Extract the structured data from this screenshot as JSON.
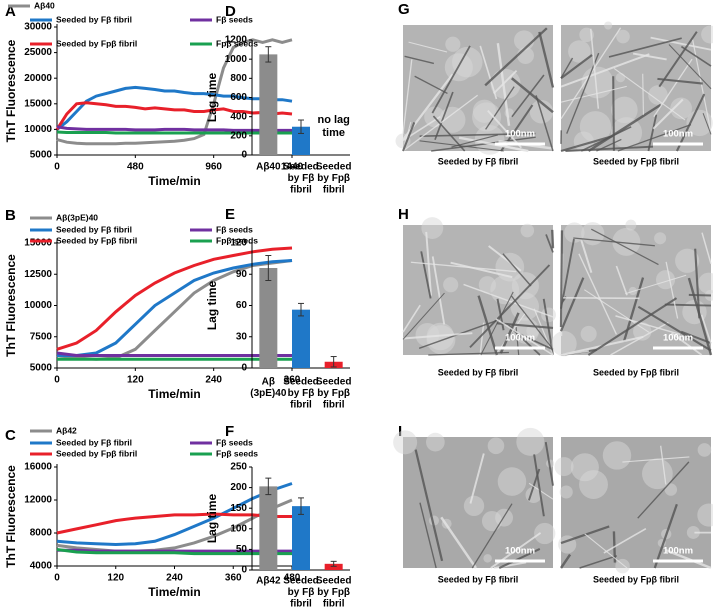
{
  "chart_data": [
    {
      "type": "line",
      "panel": "A",
      "xlabel": "Time/min",
      "ylabel": "ThT Fluorescence",
      "xlim": [
        0,
        1440
      ],
      "xticks": [
        0,
        480,
        960,
        1440
      ],
      "ylim": [
        5000,
        30000
      ],
      "yticks": [
        5000,
        10000,
        15000,
        20000,
        25000,
        30000
      ],
      "x": [
        0,
        60,
        120,
        180,
        240,
        300,
        360,
        420,
        480,
        540,
        600,
        660,
        720,
        780,
        840,
        900,
        960,
        1020,
        1080,
        1140,
        1200,
        1260,
        1320,
        1380,
        1440
      ],
      "series": [
        {
          "name": "Aβ40",
          "color": "#8c8c8c",
          "values": [
            8000,
            7500,
            7300,
            7200,
            7200,
            7200,
            7200,
            7300,
            7300,
            7400,
            7500,
            7600,
            7700,
            7900,
            8200,
            9000,
            15000,
            22000,
            26000,
            27000,
            27500,
            27000,
            27500,
            27000,
            27500
          ]
        },
        {
          "name": "Seeded by Fβ fibril",
          "color": "#1f78c8",
          "values": [
            10000,
            11500,
            13500,
            15500,
            16500,
            17000,
            17500,
            18000,
            18200,
            18000,
            17800,
            17500,
            17500,
            17200,
            17000,
            17000,
            16800,
            16500,
            16500,
            16200,
            16000,
            16000,
            15800,
            15800,
            15500
          ]
        },
        {
          "name": "Seeded by Fpβ fibril",
          "color": "#e8202a",
          "values": [
            10000,
            13000,
            15000,
            15200,
            15000,
            14800,
            14500,
            14500,
            14300,
            14000,
            14200,
            14000,
            13800,
            13800,
            13500,
            13500,
            13800,
            14000,
            13500,
            13500,
            13200,
            13300,
            13000,
            13200,
            13000
          ]
        },
        {
          "name": "Fβ seeds",
          "color": "#7030a0",
          "values": [
            10500,
            10200,
            10100,
            10000,
            10000,
            10000,
            10000,
            10000,
            9900,
            9900,
            9900,
            10000,
            10000,
            10000,
            9900,
            9900,
            9900,
            9900,
            9800,
            9800,
            9800,
            9800,
            9800,
            9800,
            9800
          ]
        },
        {
          "name": "Fpβ seeds",
          "color": "#1aa050",
          "values": [
            9500,
            9400,
            9400,
            9400,
            9400,
            9400,
            9300,
            9300,
            9300,
            9300,
            9300,
            9300,
            9300,
            9300,
            9300,
            9300,
            9300,
            9300,
            9300,
            9300,
            9300,
            9300,
            9300,
            9300,
            9300
          ]
        }
      ]
    },
    {
      "type": "line",
      "panel": "B",
      "xlabel": "Time/min",
      "ylabel": "ThT Fluorescence",
      "xlim": [
        0,
        360
      ],
      "xticks": [
        0,
        120,
        240,
        360
      ],
      "ylim": [
        5000,
        15000
      ],
      "yticks": [
        5000,
        7500,
        10000,
        12500,
        15000
      ],
      "x": [
        0,
        30,
        60,
        90,
        120,
        150,
        180,
        210,
        240,
        270,
        300,
        330,
        360
      ],
      "series": [
        {
          "name": "Aβ(3pE)40",
          "color": "#8c8c8c",
          "values": [
            6000,
            5800,
            5700,
            5800,
            6500,
            8000,
            9500,
            11000,
            12000,
            12700,
            13200,
            13400,
            13600
          ]
        },
        {
          "name": "Seeded by Fβ fibril",
          "color": "#1f78c8",
          "values": [
            6000,
            6000,
            6200,
            7000,
            8500,
            10000,
            11000,
            12000,
            12600,
            13000,
            13300,
            13500,
            13600
          ]
        },
        {
          "name": "Seeded by Fpβ fibril",
          "color": "#e8202a",
          "values": [
            6500,
            7000,
            8000,
            9500,
            10800,
            11800,
            12600,
            13200,
            13700,
            14000,
            14300,
            14500,
            14600
          ]
        },
        {
          "name": "Fβ seeds",
          "color": "#7030a0",
          "values": [
            6200,
            6000,
            6000,
            6000,
            6000,
            6000,
            6000,
            6000,
            6000,
            6000,
            6000,
            6000,
            6000
          ]
        },
        {
          "name": "Fpβ seeds",
          "color": "#1aa050",
          "values": [
            5700,
            5700,
            5700,
            5700,
            5700,
            5700,
            5700,
            5700,
            5700,
            5700,
            5700,
            5700,
            5700
          ]
        }
      ]
    },
    {
      "type": "line",
      "panel": "C",
      "xlabel": "Time/min",
      "ylabel": "ThT Fluorescence",
      "xlim": [
        0,
        480
      ],
      "xticks": [
        0,
        120,
        240,
        360,
        480
      ],
      "ylim": [
        4000,
        16000
      ],
      "yticks": [
        4000,
        8000,
        12000,
        16000
      ],
      "x": [
        0,
        40,
        80,
        120,
        160,
        200,
        240,
        280,
        320,
        360,
        400,
        440,
        480
      ],
      "series": [
        {
          "name": "Aβ42",
          "color": "#8c8c8c",
          "values": [
            6500,
            6200,
            6000,
            5800,
            5800,
            5900,
            6200,
            6800,
            7600,
            8600,
            9800,
            11000,
            12000
          ]
        },
        {
          "name": "Seeded by Fβ fibril",
          "color": "#1f78c8",
          "values": [
            7000,
            6800,
            6700,
            6600,
            6700,
            7000,
            7800,
            8800,
            9800,
            11000,
            12200,
            13200,
            14000
          ]
        },
        {
          "name": "Seeded by Fpβ fibril",
          "color": "#e8202a",
          "values": [
            8000,
            8500,
            9000,
            9500,
            9800,
            10000,
            10200,
            10200,
            10300,
            10200,
            10200,
            10000,
            10000
          ]
        },
        {
          "name": "Fβ seeds",
          "color": "#7030a0",
          "values": [
            5900,
            5900,
            5800,
            5800,
            5800,
            5800,
            5800,
            5800,
            5800,
            5800,
            5800,
            5800,
            5800
          ]
        },
        {
          "name": "Fpβ seeds",
          "color": "#1aa050",
          "values": [
            6000,
            5700,
            5600,
            5600,
            5600,
            5600,
            5600,
            5500,
            5500,
            5500,
            5500,
            5500,
            5500
          ]
        }
      ]
    },
    {
      "type": "bar",
      "panel": "D",
      "ylabel": "Lag time",
      "ylim": [
        0,
        1200
      ],
      "yticks": [
        0,
        200,
        400,
        600,
        800,
        1000,
        1200
      ],
      "categories": [
        [
          "Aβ40"
        ],
        [
          "Seeded",
          "by Fβ",
          "fibril"
        ],
        [
          "Seeded",
          "by Fpβ",
          "fibril"
        ]
      ],
      "values": [
        1050,
        295,
        null
      ],
      "errors": [
        80,
        70,
        null
      ],
      "colors": [
        "#8c8c8c",
        "#1f78c8",
        "#e8202a"
      ],
      "annotation": [
        "no lag",
        "time"
      ]
    },
    {
      "type": "bar",
      "panel": "E",
      "ylabel": "Lag time",
      "ylim": [
        0,
        120
      ],
      "yticks": [
        0,
        30,
        60,
        90,
        120
      ],
      "categories": [
        [
          "Aβ",
          "(3pE)40"
        ],
        [
          "Seeded",
          "by Fβ",
          "fibril"
        ],
        [
          "Seeded",
          "by Fpβ",
          "fibril"
        ]
      ],
      "values": [
        96,
        56,
        6
      ],
      "errors": [
        12,
        6,
        5
      ],
      "colors": [
        "#8c8c8c",
        "#1f78c8",
        "#e8202a"
      ]
    },
    {
      "type": "bar",
      "panel": "F",
      "ylabel": "Lag time",
      "ylim": [
        0,
        250
      ],
      "yticks": [
        0,
        50,
        100,
        150,
        200,
        250
      ],
      "categories": [
        [
          "Aβ42"
        ],
        [
          "Seeded",
          "by Fβ",
          "fibril"
        ],
        [
          "Seeded",
          "by Fpβ",
          "fibril"
        ]
      ],
      "values": [
        203,
        155,
        15
      ],
      "errors": [
        20,
        20,
        6
      ],
      "colors": [
        "#8c8c8c",
        "#1f78c8",
        "#e8202a"
      ]
    }
  ],
  "images": [
    {
      "panel": "G",
      "items": [
        {
          "caption": "Seeded by Fβ fibril",
          "scale": "100nm"
        },
        {
          "caption": "Seeded by Fpβ fibril",
          "scale": "100nm"
        }
      ]
    },
    {
      "panel": "H",
      "items": [
        {
          "caption": "Seeded by Fβ fibril",
          "scale": "100nm"
        },
        {
          "caption": "Seeded by Fpβ fibril",
          "scale": "100nm"
        }
      ]
    },
    {
      "panel": "I",
      "items": [
        {
          "caption": "Seeded by Fβ fibril",
          "scale": "100nm"
        },
        {
          "caption": "Seeded by Fpβ fibril",
          "scale": "100nm"
        }
      ]
    }
  ]
}
